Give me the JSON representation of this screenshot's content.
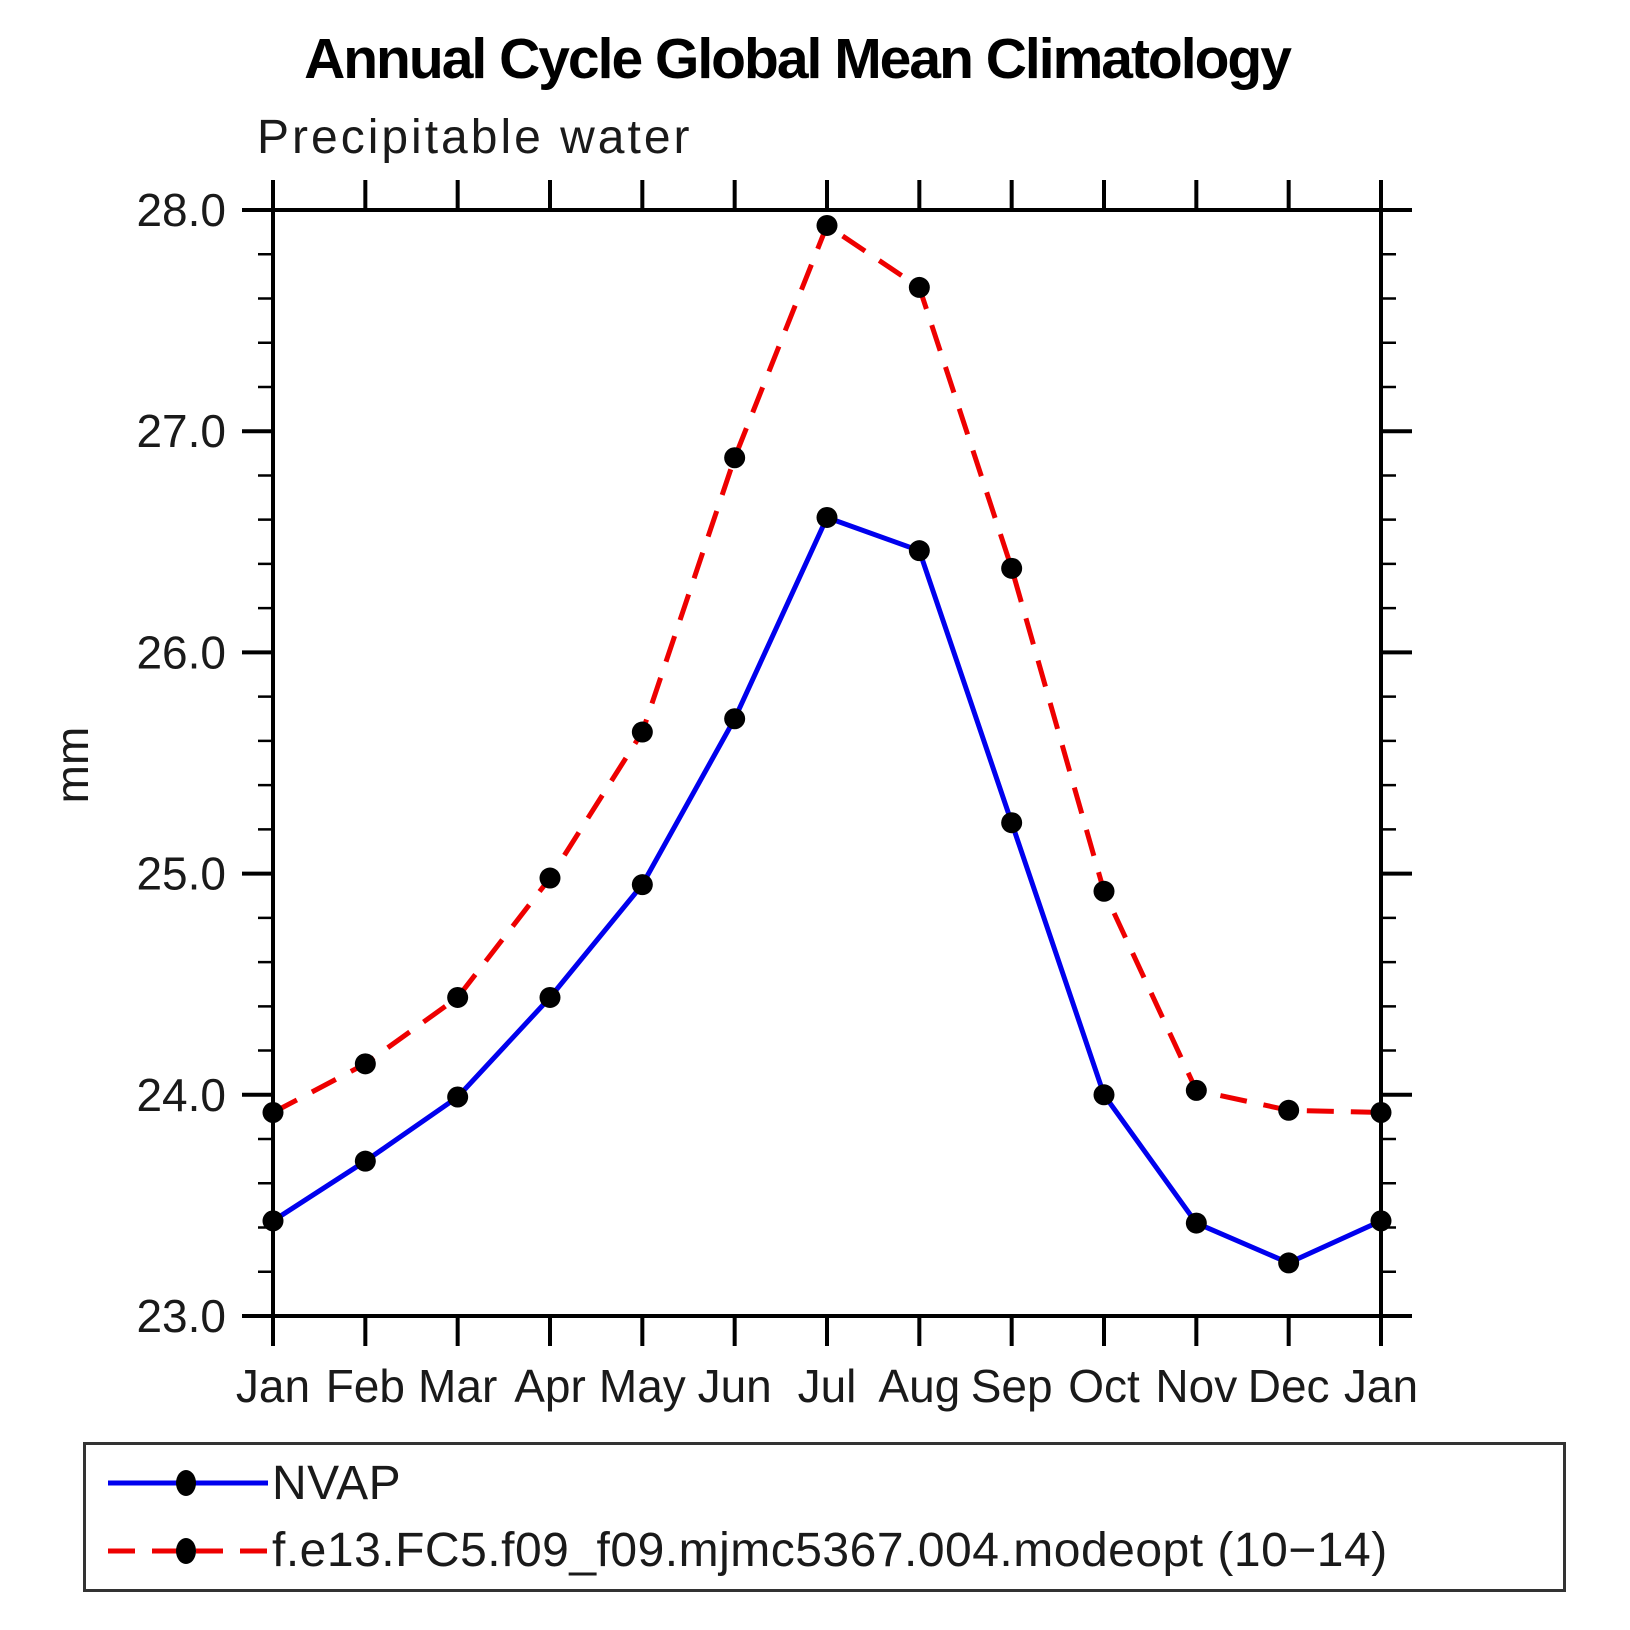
{
  "chart_data": {
    "type": "line",
    "title": "Annual Cycle Global Mean Climatology",
    "subtitle": "Precipitable water",
    "ylabel": "mm",
    "ylim": [
      23.0,
      28.0
    ],
    "ytick_interval": 1.0,
    "yminor_interval": 0.2,
    "ytick_labels": [
      "23.0",
      "24.0",
      "25.0",
      "26.0",
      "27.0",
      "28.0"
    ],
    "grid": false,
    "legend_position": "bottom-left-box",
    "marker": "filled-black-circle",
    "categories": [
      "Jan",
      "Feb",
      "Mar",
      "Apr",
      "May",
      "Jun",
      "Jul",
      "Aug",
      "Sep",
      "Oct",
      "Nov",
      "Dec",
      "Jan"
    ],
    "series": [
      {
        "name": "NVAP",
        "color": "#0000ee",
        "line": "solid",
        "values": [
          23.43,
          23.7,
          23.99,
          24.44,
          24.95,
          25.7,
          26.61,
          26.46,
          25.23,
          24.0,
          23.42,
          23.24,
          23.43
        ]
      },
      {
        "name": "f.e13.FC5.f09_f09.mjmc5367.004.modeopt (10−14)",
        "color": "#ee0000",
        "line": "dashed",
        "values": [
          23.92,
          24.14,
          24.44,
          24.98,
          25.64,
          26.88,
          27.93,
          27.65,
          26.38,
          24.92,
          24.02,
          23.93,
          23.92
        ]
      }
    ]
  },
  "colors": {
    "axis": "#000000",
    "marker": "#000000",
    "legend_border": "#333333"
  }
}
